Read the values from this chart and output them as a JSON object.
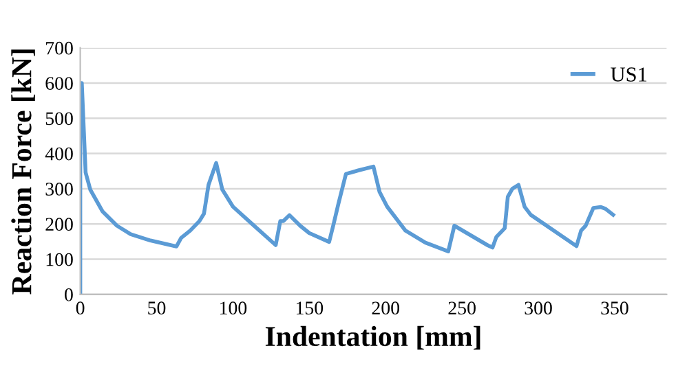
{
  "chart_data": {
    "type": "line",
    "xlabel": "Indentation [mm]",
    "ylabel": "Reaction Force [kN]",
    "series": [
      {
        "name": "US1",
        "color": "#5b9bd5",
        "x": [
          0,
          0,
          1,
          3.5,
          6.6,
          14.5,
          24,
          33,
          46,
          63,
          66,
          72,
          78,
          81,
          84,
          89,
          93,
          100,
          112,
          128,
          131,
          133,
          137,
          144,
          150,
          163,
          166,
          169,
          174,
          182,
          192,
          196,
          201,
          213,
          226,
          241,
          245,
          267,
          270,
          272.5,
          278,
          280,
          283,
          287,
          291,
          295,
          325,
          328,
          331,
          336,
          341,
          344,
          349
        ],
        "values": [
          0,
          600,
          600,
          346,
          297,
          236,
          195,
          171,
          153,
          136,
          160,
          181,
          208,
          229,
          311,
          373,
          298,
          249,
          202,
          140,
          208,
          208,
          225,
          195,
          174,
          149,
          201,
          256,
          342,
          352,
          363,
          291,
          249,
          181,
          147,
          122,
          195,
          139,
          133,
          163,
          188,
          277,
          300,
          311,
          249,
          226,
          137,
          181,
          195,
          245,
          248,
          243,
          226
        ]
      }
    ],
    "xlim": [
      0,
      384
    ],
    "ylim": [
      0,
      700
    ],
    "xticks": [
      0,
      50,
      100,
      150,
      200,
      250,
      300,
      350
    ],
    "yticks": [
      0,
      100,
      200,
      300,
      400,
      500,
      600,
      700
    ],
    "grid": "y",
    "legend": "top right",
    "marker": "none",
    "line_style": "solid"
  }
}
